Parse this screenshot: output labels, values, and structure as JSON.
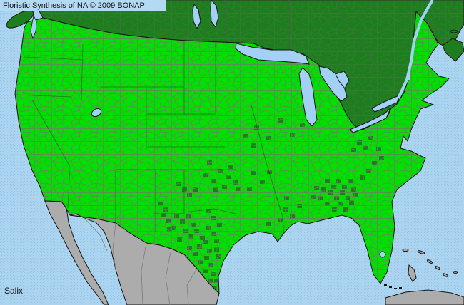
{
  "header": {
    "title": "Floristic Synthesis of NA © 2009 BONAP"
  },
  "footer": {
    "taxon": "Salix"
  },
  "map": {
    "colors": {
      "bright_green_county": "#00df00",
      "dark_green": "#1e7d1e",
      "ocean": "#abd4f1",
      "ocean_dot": "#95c3e6",
      "inland_water": "#a3d1f6",
      "gray_land": "#acacac",
      "gray_border": "#7d7d7d",
      "county_border": "#6e7e64",
      "coastline": "#141414",
      "state_line": "#1a2a1a",
      "titlebar_bg": "#b4d9f3",
      "text": "#111111"
    }
  }
}
